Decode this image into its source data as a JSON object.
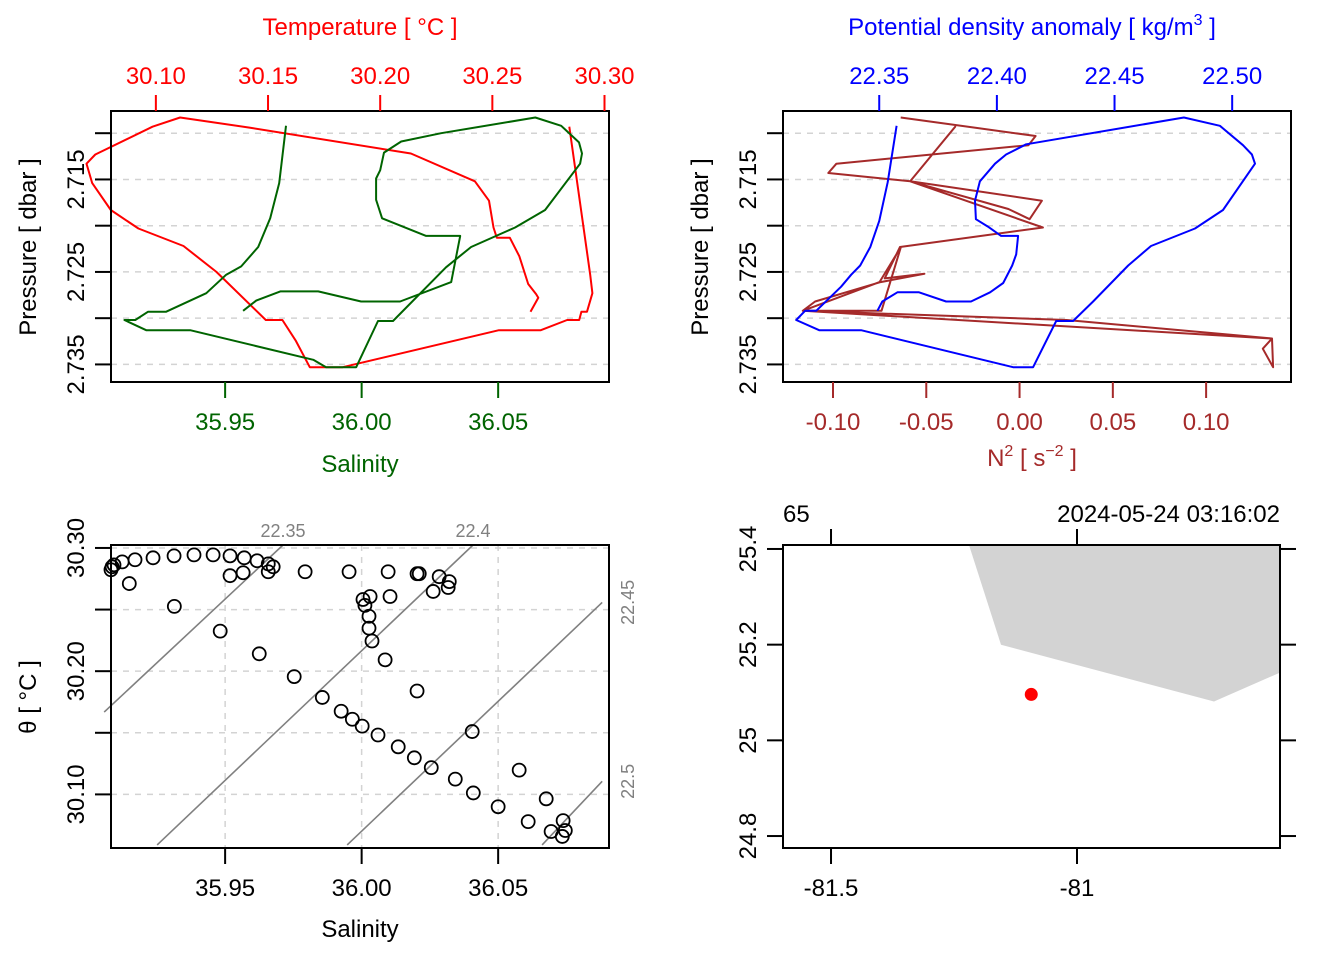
{
  "colors": {
    "temperature": "#ff0000",
    "salinity": "#006400",
    "density": "#0000ff",
    "n2": "#a52a2a",
    "isopycnal": "#808080",
    "grid": "#d3d3d3",
    "land": "#d3d3d3",
    "station": "#ff0000",
    "axis": "#000000"
  },
  "chart_data": [
    {
      "id": "profile-TS",
      "type": "line",
      "title": "",
      "top_axis": {
        "label": "Temperature [ °C ]",
        "range": [
          30.08,
          30.302
        ],
        "ticks": [
          30.1,
          30.15,
          30.2,
          30.25,
          30.3
        ],
        "tick_labels": [
          "30.10",
          "30.15",
          "30.20",
          "30.25",
          "30.30"
        ]
      },
      "bottom_axis": {
        "label": "Salinity",
        "range": [
          35.9082,
          36.0906
        ],
        "ticks": [
          35.95,
          36.0,
          36.05
        ],
        "tick_labels": [
          "35.95",
          "36.00",
          "36.05"
        ]
      },
      "y_axis": {
        "label": "Pressure [ dbar ]",
        "range": [
          2.7369,
          2.7076
        ],
        "inverted": true,
        "ticks": [
          2.71,
          2.715,
          2.72,
          2.725,
          2.73,
          2.735
        ],
        "tick_labels": [
          "",
          "2.715",
          "",
          "2.725",
          "",
          "2.735"
        ]
      },
      "grid": "horizontal-dashed",
      "series": [
        {
          "name": "Temperature",
          "axis": "top",
          "x": [
            30.267,
            30.2705,
            30.2695,
            30.266,
            30.262,
            30.2578,
            30.252,
            30.2505,
            30.2485,
            30.2422,
            30.2137,
            30.1417,
            30.1108,
            30.0985,
            30.073,
            30.0691,
            30.0716,
            30.0799,
            30.0922,
            30.1123,
            30.127,
            30.149,
            30.1564,
            30.1623,
            30.1686,
            30.1833,
            30.2529,
            30.2716,
            30.2833,
            30.2887,
            30.2897,
            30.2922,
            30.2946,
            30.2936,
            30.2843
          ],
          "y": [
            2.7293,
            2.7278,
            2.7274,
            2.7263,
            2.7233,
            2.7213,
            2.7213,
            2.7202,
            2.7173,
            2.7152,
            2.7122,
            2.7094,
            2.7083,
            2.7093,
            2.7123,
            2.7133,
            2.7154,
            2.7183,
            2.7203,
            2.7222,
            2.725,
            2.7302,
            2.7302,
            2.7324,
            2.7353,
            2.7353,
            2.7313,
            2.7313,
            2.7302,
            2.7302,
            2.7293,
            2.7293,
            2.7273,
            2.7253,
            2.7093
          ]
        },
        {
          "name": "Salinity",
          "axis": "bottom",
          "x": [
            35.9723,
            35.9698,
            35.9665,
            35.9621,
            35.9559,
            35.9504,
            35.9431,
            35.9284,
            35.9218,
            35.9171,
            35.9131,
            35.9211,
            35.9372,
            35.9823,
            35.987,
            35.9907,
            35.998,
            36.006,
            36.0115,
            36.0309,
            36.0401,
            36.0562,
            36.0672,
            36.08,
            36.0807,
            36.0796,
            36.0731,
            36.0636,
            36.0291,
            36.0145,
            36.0082,
            36.0068,
            36.0053,
            36.0053,
            36.0075,
            36.0236,
            36.0361,
            36.0328,
            36.0141,
            35.9998,
            35.9841,
            35.9702,
            35.9614,
            35.9566
          ],
          "y": [
            2.7092,
            2.7154,
            2.7192,
            2.7223,
            2.7244,
            2.7253,
            2.7273,
            2.7293,
            2.7293,
            2.7302,
            2.7302,
            2.7313,
            2.7313,
            2.7345,
            2.7353,
            2.7353,
            2.7353,
            2.7303,
            2.7303,
            2.7245,
            2.7223,
            2.7202,
            2.7183,
            2.7133,
            2.7122,
            2.711,
            2.7092,
            2.7083,
            2.71,
            2.7109,
            2.7121,
            2.714,
            2.7149,
            2.7172,
            2.7192,
            2.7211,
            2.7211,
            2.7261,
            2.7282,
            2.7282,
            2.7271,
            2.7271,
            2.7281,
            2.7292
          ]
        }
      ]
    },
    {
      "id": "profile-density-N2",
      "type": "line",
      "title": "",
      "top_axis": {
        "label": "Potential density anomaly [ kg/m³ ]",
        "range": [
          22.3091,
          22.525
        ],
        "ticks": [
          22.35,
          22.4,
          22.45,
          22.5
        ],
        "tick_labels": [
          "22.35",
          "22.40",
          "22.45",
          "22.50"
        ]
      },
      "bottom_axis": {
        "label": "N² [ s⁻² ]",
        "range": [
          -0.1268,
          0.1455
        ],
        "ticks": [
          -0.1,
          -0.05,
          0.0,
          0.05,
          0.1
        ],
        "tick_labels": [
          "-0.10",
          "-0.05",
          "0.00",
          "0.05",
          "0.10"
        ]
      },
      "y_axis": {
        "label": "Pressure [ dbar ]",
        "range": [
          2.7369,
          2.7076
        ],
        "inverted": true,
        "ticks": [
          2.71,
          2.715,
          2.72,
          2.725,
          2.73,
          2.735
        ],
        "tick_labels": [
          "",
          "2.715",
          "",
          "2.725",
          "",
          "2.735"
        ]
      },
      "grid": "horizontal-dashed",
      "series": [
        {
          "name": "Potential density anomaly",
          "axis": "top",
          "x": [
            22.3574,
            22.3536,
            22.35,
            22.3462,
            22.3419,
            22.3381,
            22.3338,
            22.3232,
            22.3185,
            22.3147,
            22.3245,
            22.3423,
            22.4069,
            22.4154,
            22.4154,
            22.4252,
            22.4324,
            22.4409,
            22.4558,
            22.4655,
            22.4842,
            22.4961,
            22.5097,
            22.5084,
            22.5046,
            22.4948,
            22.4795,
            22.4124,
            22.4039,
            22.4039,
            22.3992,
            22.3928,
            22.3907,
            22.3911,
            22.3962,
            22.4018,
            22.409,
            22.4082,
            22.4065,
            22.4027,
            22.3971,
            22.389,
            22.3784,
            22.3669,
            22.3577,
            22.3513,
            22.3492
          ],
          "y": [
            2.7092,
            2.7153,
            2.7195,
            2.7223,
            2.7243,
            2.7253,
            2.7266,
            2.7292,
            2.7292,
            2.7302,
            2.7313,
            2.7313,
            2.7353,
            2.7353,
            2.7353,
            2.7303,
            2.7303,
            2.7282,
            2.7243,
            2.7222,
            2.7203,
            2.7183,
            2.7133,
            2.7123,
            2.7113,
            2.7092,
            2.7083,
            2.7112,
            2.7123,
            2.7123,
            2.7133,
            2.7152,
            2.7173,
            2.7193,
            2.7201,
            2.7211,
            2.7211,
            2.7231,
            2.7243,
            2.7262,
            2.7272,
            2.7282,
            2.7282,
            2.7272,
            2.7272,
            2.7282,
            2.7292
          ]
        },
        {
          "name": "N²",
          "axis": "bottom",
          "x": [
            -0.0637,
            0.0086,
            0.0048,
            -0.0982,
            -0.1025,
            -0.0586,
            -0.0345,
            -0.0586,
            0.012,
            0.0054,
            -0.006,
            -0.0586,
            0.0125,
            -0.0641,
            -0.0723,
            -0.051,
            -0.0745,
            -0.1096,
            -0.1162,
            -0.0751,
            -0.0636,
            -0.074,
            -0.1162,
            0.1353,
            0.1304,
            0.1359,
            0.1353,
            0.0252,
            -0.1162
          ],
          "y": [
            2.7083,
            2.7103,
            2.7113,
            2.7133,
            2.7143,
            2.7152,
            2.7093,
            2.7152,
            2.7173,
            2.7193,
            2.7182,
            2.7152,
            2.7202,
            2.7223,
            2.7257,
            2.7252,
            2.7261,
            2.7282,
            2.7292,
            2.7261,
            2.7223,
            2.7292,
            2.7292,
            2.7322,
            2.7333,
            2.7353,
            2.7322,
            2.7302,
            2.7292
          ]
        }
      ]
    },
    {
      "id": "TS-diagram",
      "type": "scatter",
      "title": "",
      "xlabel": "Salinity",
      "ylabel": "θ [ °C ]",
      "x_range": [
        35.9082,
        36.0906
      ],
      "y_range": [
        30.0565,
        30.3024
      ],
      "x_ticks": [
        35.95,
        36.0,
        36.05
      ],
      "x_tick_labels": [
        "35.95",
        "36.00",
        "36.05"
      ],
      "y_ticks": [
        30.1,
        30.15,
        30.2,
        30.25,
        30.3
      ],
      "y_tick_labels": [
        "30.10",
        "",
        "30.20",
        "",
        "30.30"
      ],
      "grid": "dashed",
      "points": {
        "x": [
          35.9082,
          35.9086,
          35.9093,
          35.9123,
          35.917,
          35.9236,
          35.9313,
          35.9386,
          35.9456,
          35.9518,
          35.957,
          35.9617,
          35.9658,
          35.9676,
          35.9518,
          35.9566,
          35.9658,
          35.9793,
          35.9954,
          36.0097,
          36.0211,
          36.0284,
          36.0321,
          36.0317,
          36.0262,
          36.0104,
          36.0031,
          36.0005,
          36.0012,
          36.0027,
          36.0027,
          36.0038,
          36.0086,
          35.9149,
          35.9314,
          35.9482,
          35.9625,
          35.9753,
          35.9856,
          35.9925,
          35.9966,
          36.0002,
          36.006,
          36.0134,
          36.0193,
          36.0255,
          36.0343,
          36.0409,
          36.05,
          36.061,
          36.0694,
          36.0735,
          36.0746,
          36.0738,
          36.0676,
          36.0577,
          36.0405,
          36.0203,
          36.0203
        ],
        "y": [
          30.2823,
          30.2847,
          30.2863,
          30.2887,
          30.2904,
          30.292,
          30.2936,
          30.2944,
          30.2944,
          30.2936,
          30.292,
          30.2896,
          30.2871,
          30.2847,
          30.2775,
          30.2799,
          30.2807,
          30.2807,
          30.2807,
          30.2807,
          30.2791,
          30.2767,
          30.2727,
          30.2679,
          30.2647,
          30.2606,
          30.2606,
          30.2582,
          30.2534,
          30.2446,
          30.2349,
          30.2245,
          30.2092,
          30.2711,
          30.2526,
          30.2325,
          30.2141,
          30.1956,
          30.1787,
          30.1675,
          30.161,
          30.1554,
          30.1482,
          30.1386,
          30.1297,
          30.1217,
          30.1124,
          30.1012,
          30.09,
          30.0779,
          30.0699,
          30.0659,
          30.0707,
          30.0787,
          30.0964,
          30.1197,
          30.151,
          30.1839,
          30.2791
        ]
      },
      "isopycnals": [
        {
          "label": "22.35",
          "S": [
            35.9057,
            35.9712
          ],
          "theta": [
            30.1668,
            30.3024
          ],
          "label_side": "top"
        },
        {
          "label": "22.4",
          "S": [
            35.9251,
            36.0408
          ],
          "theta": [
            30.059,
            30.3024
          ],
          "label_side": "top"
        },
        {
          "label": "22.45",
          "S": [
            35.9947,
            36.0881
          ],
          "theta": [
            30.059,
            30.2558
          ],
          "label_side": "right"
        },
        {
          "label": "22.5",
          "S": [
            36.0661,
            36.0881
          ],
          "theta": [
            30.059,
            30.1106
          ],
          "label_side": "right"
        }
      ]
    },
    {
      "id": "station-map",
      "type": "scatter",
      "title": "",
      "top_labels": {
        "station": "65",
        "time": "2024-05-24 03:16:02"
      },
      "x_range": [
        -81.5976,
        -80.5874
      ],
      "y_range": [
        24.775,
        25.4083
      ],
      "x_ticks": [
        -81.5,
        -81.0
      ],
      "x_tick_labels": [
        "-81.5",
        "-81"
      ],
      "y_ticks": [
        24.8,
        25.0,
        25.2,
        25.4
      ],
      "y_tick_labels": [
        "24.8",
        "25",
        "25.2",
        "25.4"
      ],
      "station": {
        "lon": -81.093,
        "lat": 25.096
      },
      "land_polygon": {
        "lon": [
          -81.2195,
          -81.1545,
          -80.7215,
          -80.5874,
          -80.5874
        ],
        "lat": [
          25.4083,
          25.2,
          25.0813,
          25.1417,
          25.4083
        ]
      }
    }
  ]
}
